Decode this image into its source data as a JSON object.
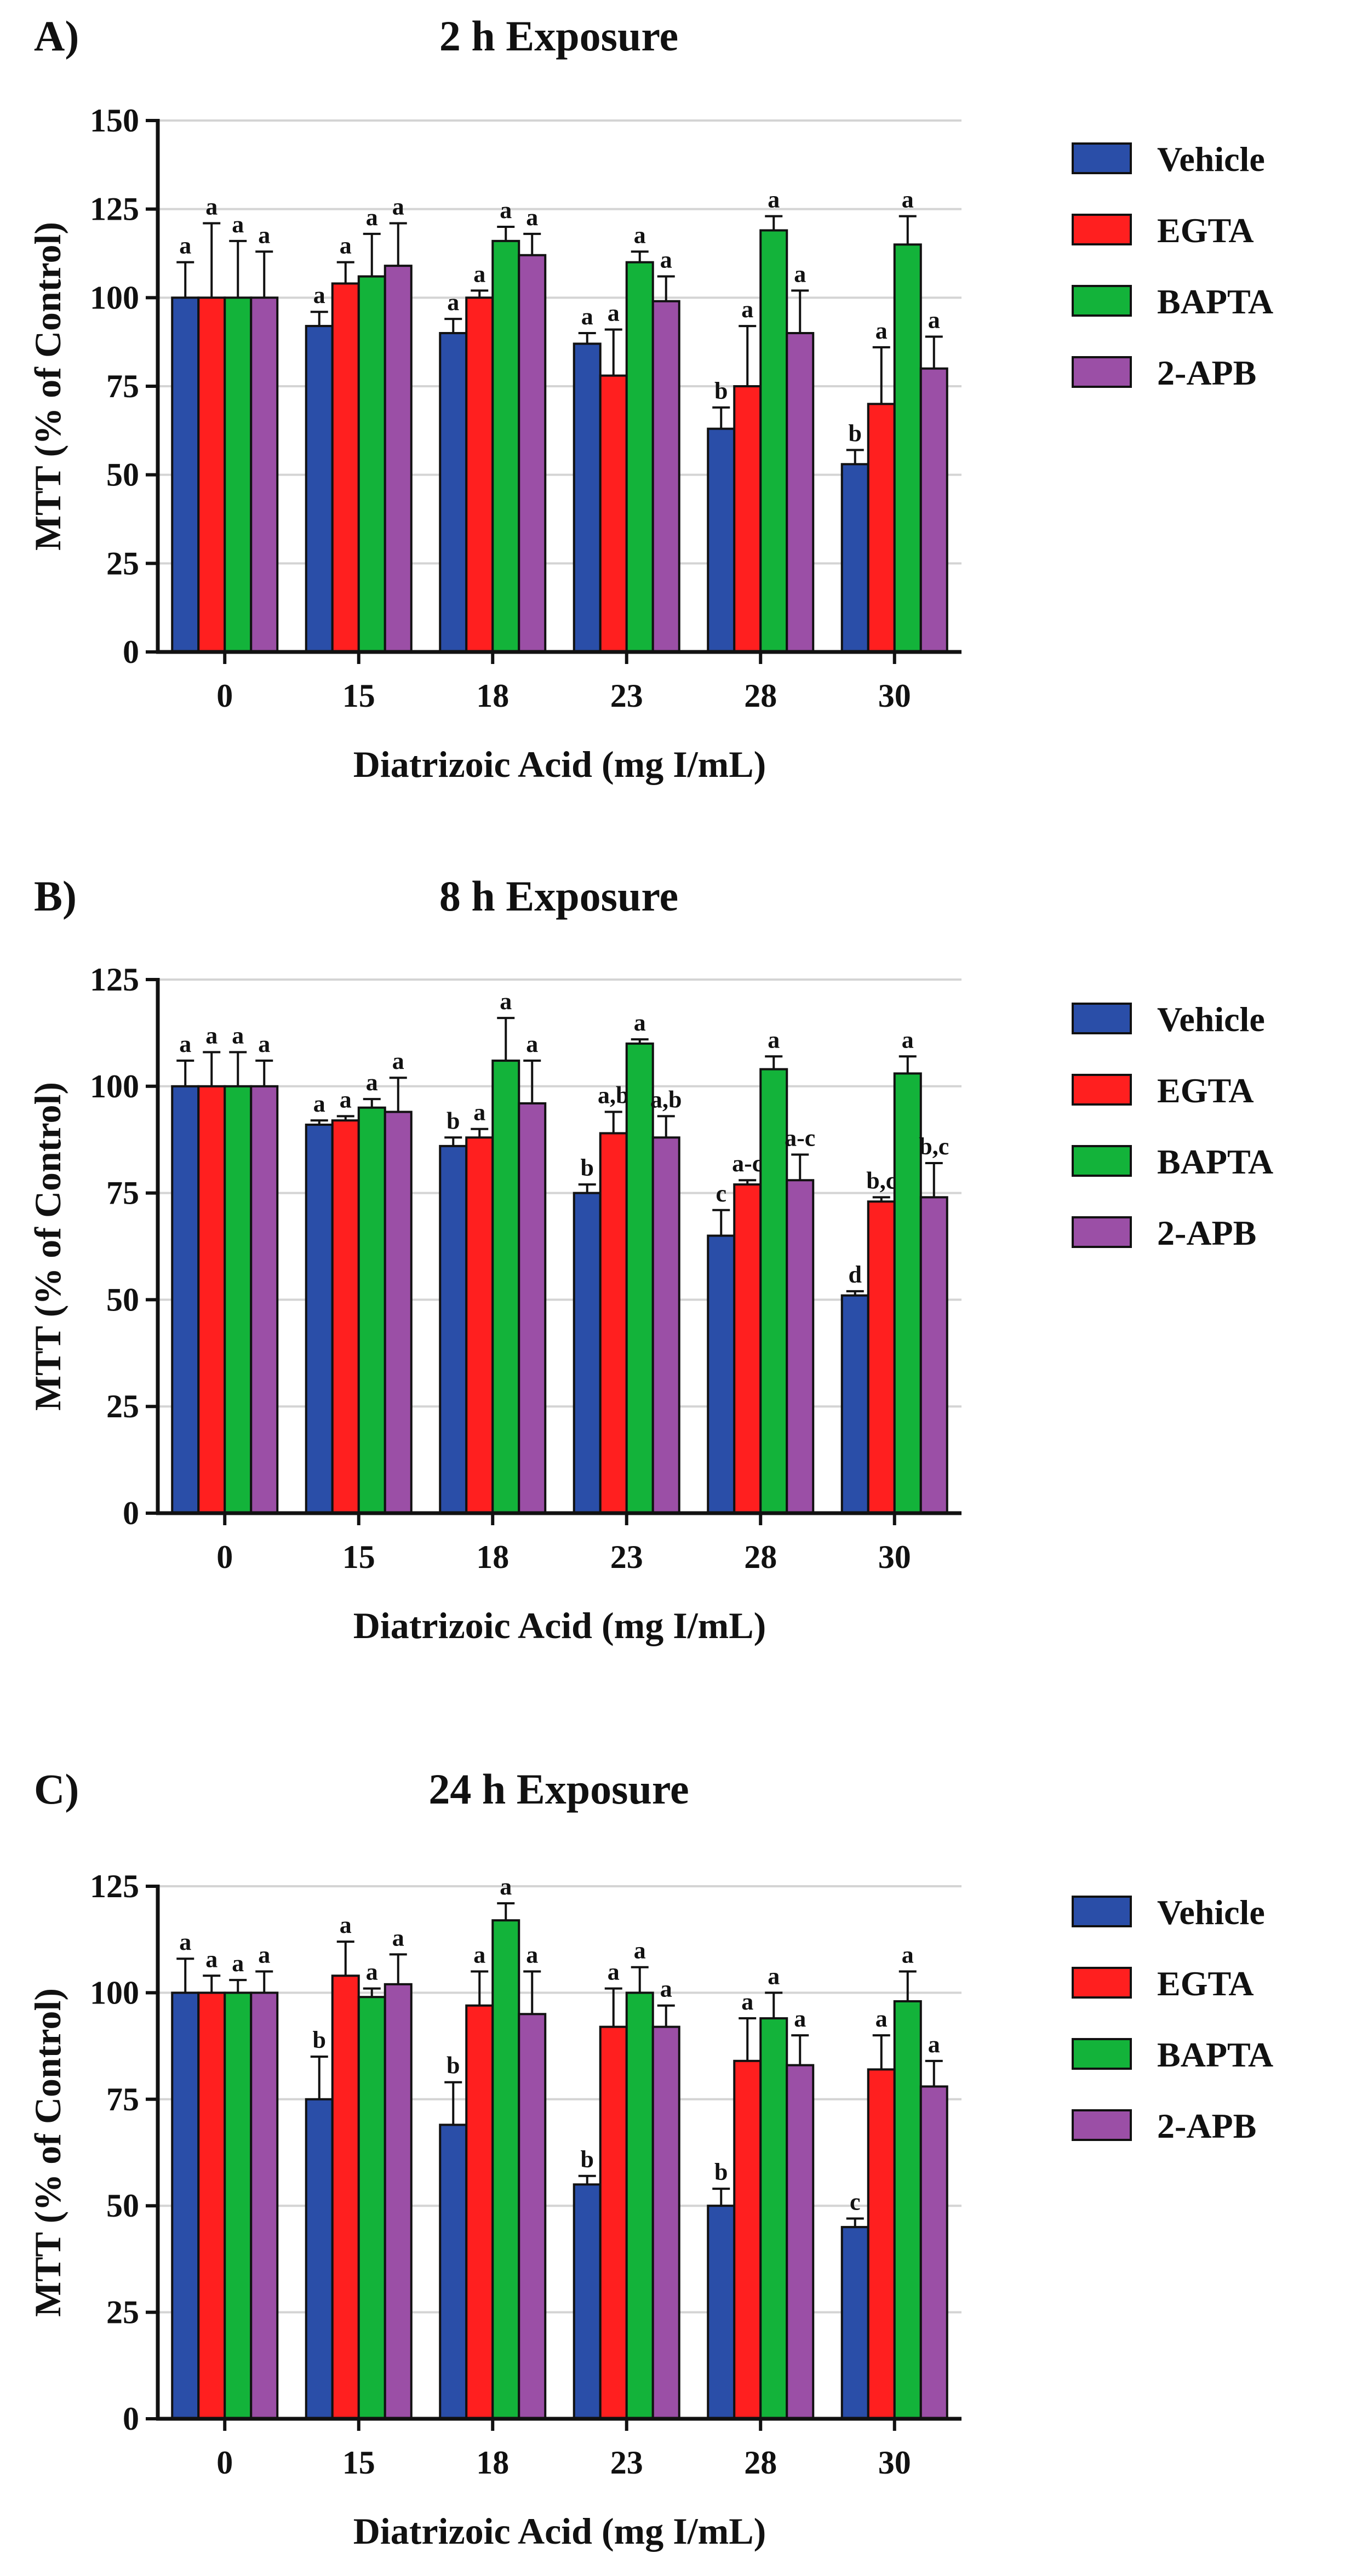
{
  "series_colors": {
    "Vehicle": "#2a4ea8",
    "EGTA": "#ff1f1f",
    "BAPTA": "#13b33a",
    "2-APB": "#9b4fa6"
  },
  "chart_data": [
    {
      "type": "bar",
      "panel_label": "A)",
      "title": "2 h Exposure",
      "xlabel": "Diatrizoic Acid (mg I/mL)",
      "ylabel": "MTT (% of Control)",
      "ylim": [
        0,
        150
      ],
      "yticks": [
        0,
        25,
        50,
        75,
        100,
        125,
        150
      ],
      "grid": true,
      "legend_position": "right",
      "categories": [
        "0",
        "15",
        "18",
        "23",
        "28",
        "30"
      ],
      "series": [
        {
          "name": "Vehicle",
          "values": [
            100,
            92,
            90,
            87,
            63,
            53
          ],
          "errors": [
            10,
            4,
            4,
            3,
            6,
            4
          ],
          "labels": [
            "a",
            "a",
            "a",
            "a",
            "b",
            "b"
          ]
        },
        {
          "name": "EGTA",
          "values": [
            100,
            104,
            100,
            78,
            75,
            70
          ],
          "errors": [
            21,
            6,
            2,
            13,
            17,
            16
          ],
          "labels": [
            "a",
            "a",
            "a",
            "a",
            "a",
            "a"
          ]
        },
        {
          "name": "BAPTA",
          "values": [
            100,
            106,
            116,
            110,
            119,
            115
          ],
          "errors": [
            16,
            12,
            4,
            3,
            4,
            8
          ],
          "labels": [
            "a",
            "a",
            "a",
            "a",
            "a",
            "a"
          ]
        },
        {
          "name": "2-APB",
          "values": [
            100,
            109,
            112,
            99,
            90,
            80
          ],
          "errors": [
            13,
            12,
            6,
            7,
            12,
            9
          ],
          "labels": [
            "a",
            "a",
            "a",
            "a",
            "a",
            "a"
          ]
        }
      ]
    },
    {
      "type": "bar",
      "panel_label": "B)",
      "title": "8 h Exposure",
      "xlabel": "Diatrizoic Acid (mg I/mL)",
      "ylabel": "MTT (% of Control)",
      "ylim": [
        0,
        125
      ],
      "yticks": [
        0,
        25,
        50,
        75,
        100,
        125
      ],
      "grid": true,
      "legend_position": "right",
      "categories": [
        "0",
        "15",
        "18",
        "23",
        "28",
        "30"
      ],
      "series": [
        {
          "name": "Vehicle",
          "values": [
            100,
            91,
            86,
            75,
            65,
            51
          ],
          "errors": [
            6,
            1,
            2,
            2,
            6,
            1
          ],
          "labels": [
            "a",
            "a",
            "b",
            "b",
            "c",
            "d"
          ]
        },
        {
          "name": "EGTA",
          "values": [
            100,
            92,
            88,
            89,
            77,
            73
          ],
          "errors": [
            8,
            1,
            2,
            5,
            1,
            1
          ],
          "labels": [
            "a",
            "a",
            "a",
            "a,b",
            "a-c",
            "b,c"
          ]
        },
        {
          "name": "BAPTA",
          "values": [
            100,
            95,
            106,
            110,
            104,
            103
          ],
          "errors": [
            8,
            2,
            10,
            1,
            3,
            4
          ],
          "labels": [
            "a",
            "a",
            "a",
            "a",
            "a",
            "a"
          ]
        },
        {
          "name": "2-APB",
          "values": [
            100,
            94,
            96,
            88,
            78,
            74
          ],
          "errors": [
            6,
            8,
            10,
            5,
            6,
            8
          ],
          "labels": [
            "a",
            "a",
            "a",
            "a,b",
            "a-c",
            "b,c"
          ]
        }
      ]
    },
    {
      "type": "bar",
      "panel_label": "C)",
      "title": "24 h Exposure",
      "xlabel": "Diatrizoic Acid (mg I/mL)",
      "ylabel": "MTT (% of Control)",
      "ylim": [
        0,
        125
      ],
      "yticks": [
        0,
        25,
        50,
        75,
        100,
        125
      ],
      "grid": true,
      "legend_position": "right",
      "categories": [
        "0",
        "15",
        "18",
        "23",
        "28",
        "30"
      ],
      "series": [
        {
          "name": "Vehicle",
          "values": [
            100,
            75,
            69,
            55,
            50,
            45
          ],
          "errors": [
            8,
            10,
            10,
            2,
            4,
            2
          ],
          "labels": [
            "a",
            "b",
            "b",
            "b",
            "b",
            "c"
          ]
        },
        {
          "name": "EGTA",
          "values": [
            100,
            104,
            97,
            92,
            84,
            82
          ],
          "errors": [
            4,
            8,
            8,
            9,
            10,
            8
          ],
          "labels": [
            "a",
            "a",
            "a",
            "a",
            "a",
            "a"
          ]
        },
        {
          "name": "BAPTA",
          "values": [
            100,
            99,
            117,
            100,
            94,
            98
          ],
          "errors": [
            3,
            2,
            4,
            6,
            6,
            7
          ],
          "labels": [
            "a",
            "a",
            "a",
            "a",
            "a",
            "a"
          ]
        },
        {
          "name": "2-APB",
          "values": [
            100,
            102,
            95,
            92,
            83,
            78
          ],
          "errors": [
            5,
            7,
            10,
            5,
            7,
            6
          ],
          "labels": [
            "a",
            "a",
            "a",
            "a",
            "a",
            "a"
          ]
        }
      ]
    }
  ]
}
